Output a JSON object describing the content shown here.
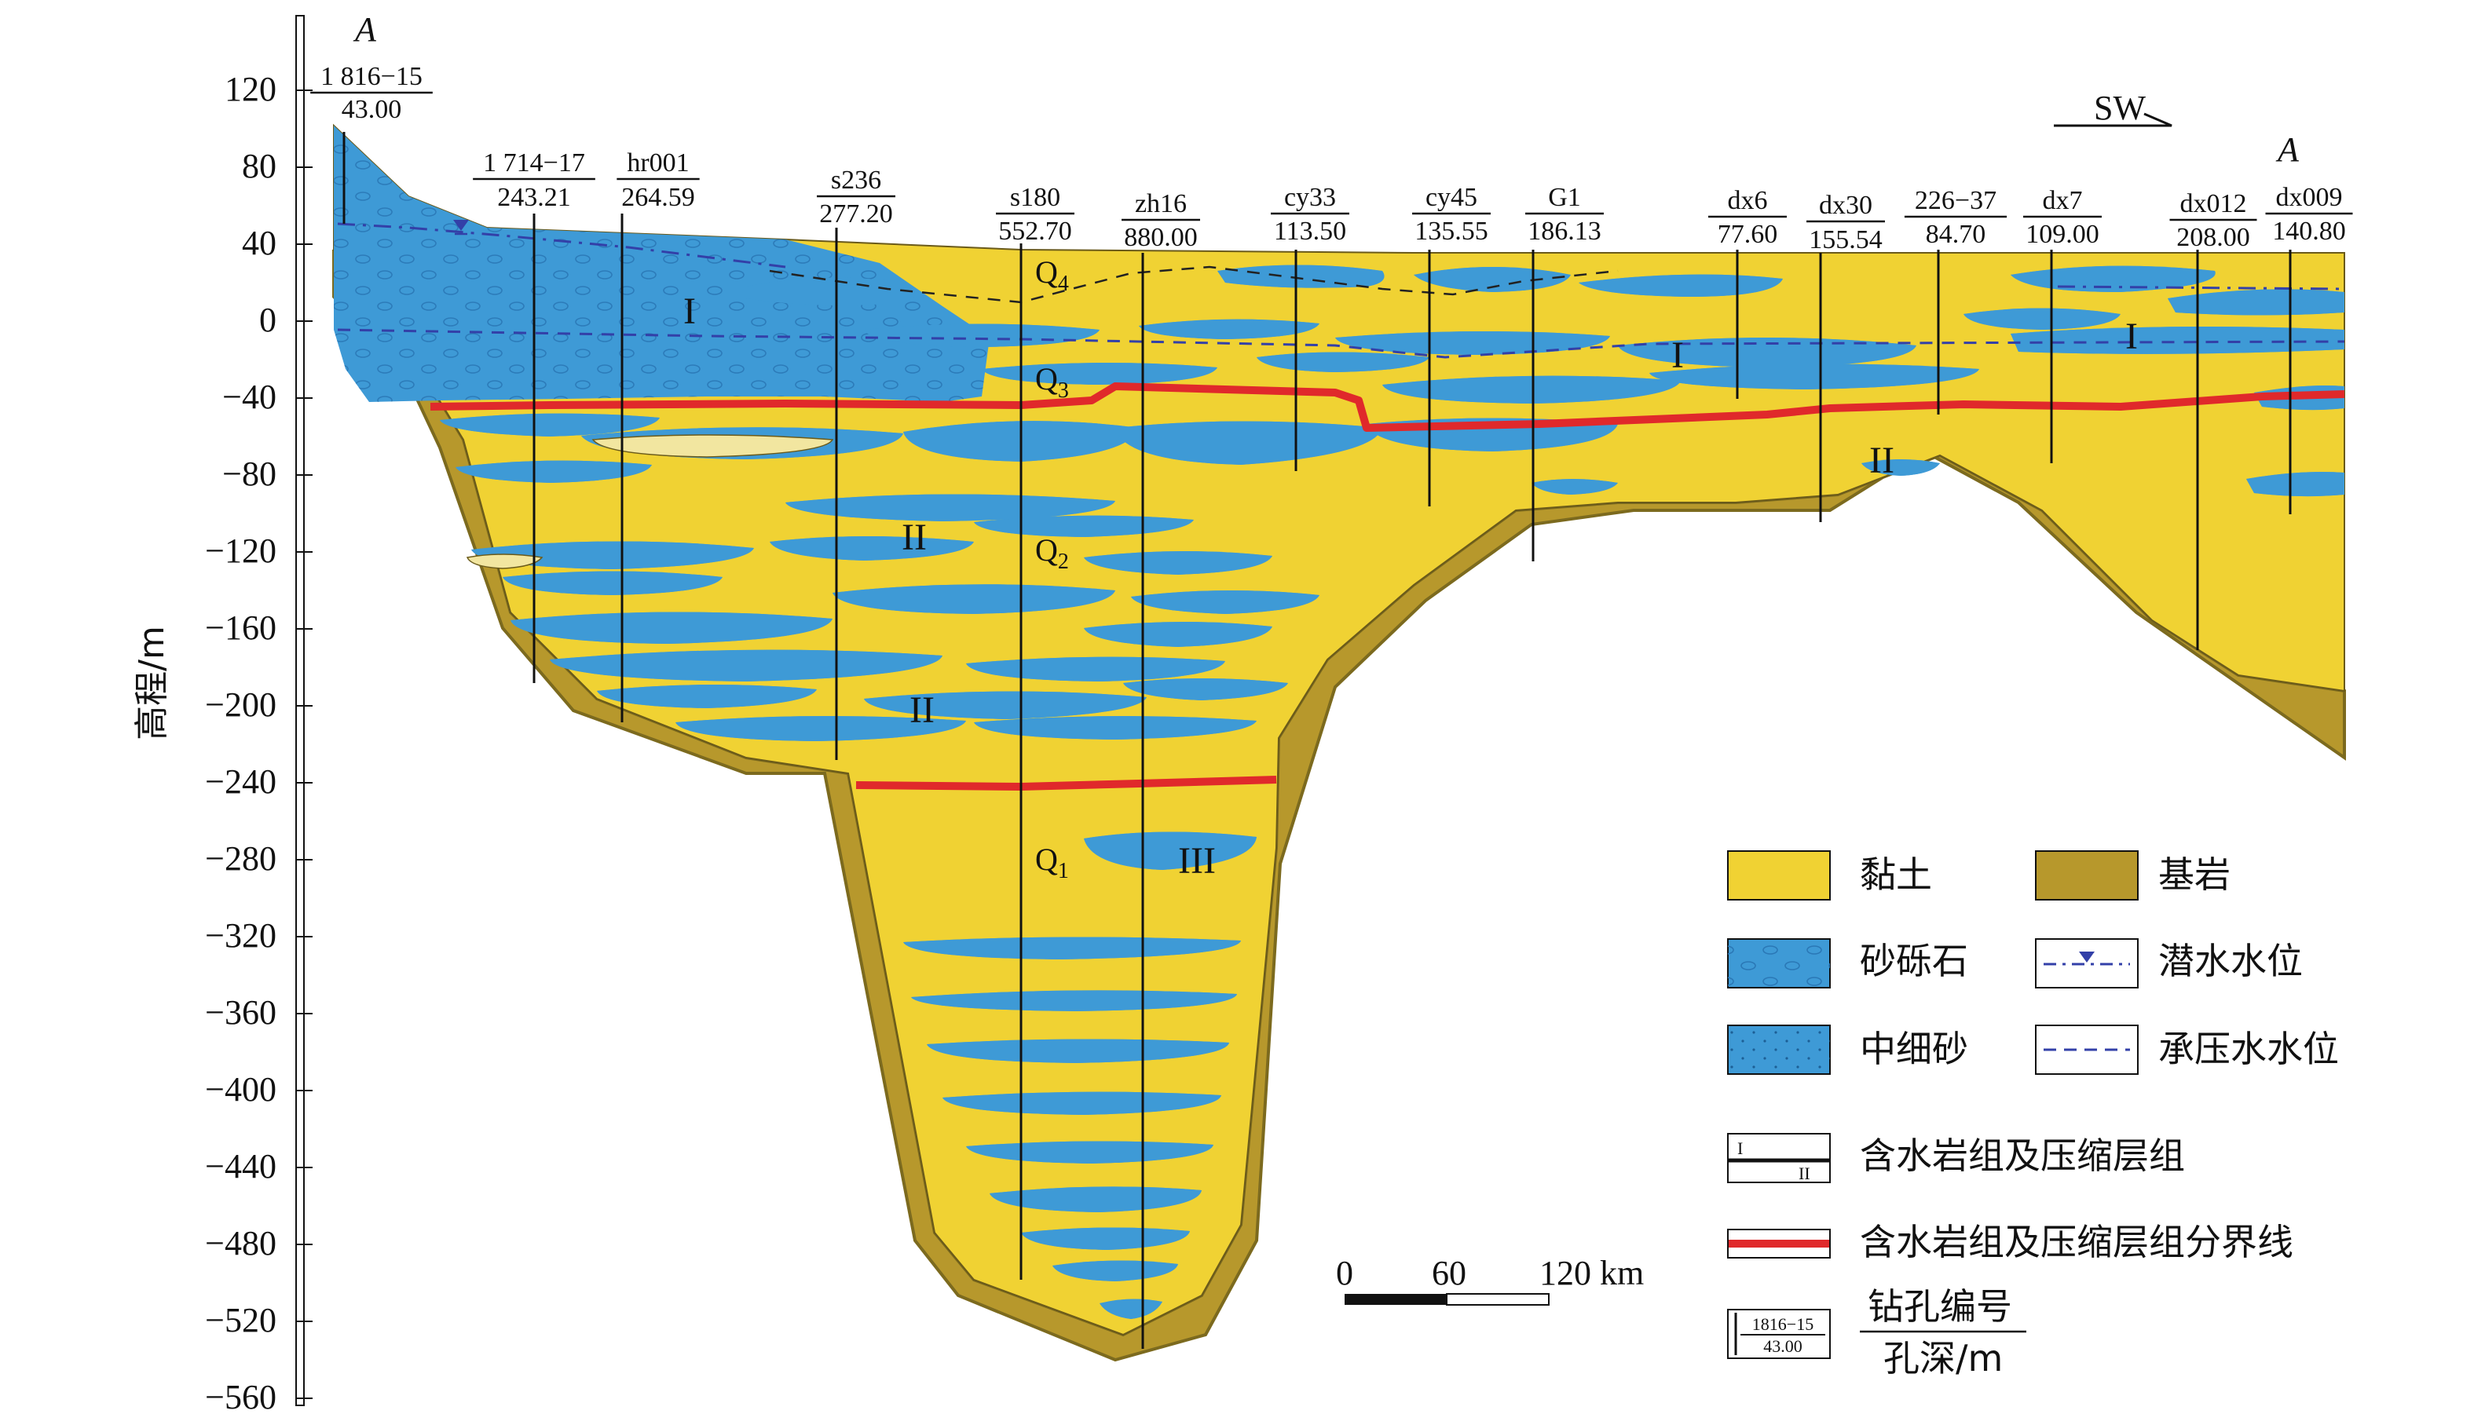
{
  "figure": {
    "y_axis": {
      "title": "高程/m",
      "ticks": [
        "120",
        "80",
        "40",
        "0",
        "−40",
        "−80",
        "−120",
        "−160",
        "−200",
        "−240",
        "−280",
        "−320",
        "−360",
        "−400",
        "−440",
        "−480",
        "−520",
        "−560"
      ]
    },
    "section_ends": {
      "left": "A",
      "right": "A"
    },
    "direction": "SW",
    "boreholes": [
      {
        "id": "1 816−15",
        "depth": "43.00"
      },
      {
        "id": "1 714−17",
        "depth": "243.21"
      },
      {
        "id": "hr001",
        "depth": "264.59"
      },
      {
        "id": "s236",
        "depth": "277.20"
      },
      {
        "id": "s180",
        "depth": "552.70"
      },
      {
        "id": "zh16",
        "depth": "880.00"
      },
      {
        "id": "cy33",
        "depth": "113.50"
      },
      {
        "id": "cy45",
        "depth": "135.55"
      },
      {
        "id": "G1",
        "depth": "186.13"
      },
      {
        "id": "dx6",
        "depth": "77.60"
      },
      {
        "id": "dx30",
        "depth": "155.54"
      },
      {
        "id": "226−37",
        "depth": "84.70"
      },
      {
        "id": "dx7",
        "depth": "109.00"
      },
      {
        "id": "dx012",
        "depth": "208.00"
      },
      {
        "id": "dx009",
        "depth": "140.80"
      }
    ],
    "aquifer_units": [
      "I",
      "I",
      "I",
      "II",
      "II",
      "II",
      "III"
    ],
    "strata": [
      {
        "main": "Q",
        "sub": "4"
      },
      {
        "main": "Q",
        "sub": "3"
      },
      {
        "main": "Q",
        "sub": "2"
      },
      {
        "main": "Q",
        "sub": "1"
      }
    ],
    "scale_bar": {
      "zero": "0",
      "mid": "60",
      "end": "120 km"
    },
    "legend": {
      "clay": "黏土",
      "bedrock": "基岩",
      "gravel": "砂砾石",
      "phreatic": "潜水水位",
      "finesand": "中细砂",
      "confined": "承压水水位",
      "aquifer_group": "含水岩组及压缩层组",
      "boundary": "含水岩组及压缩层组分界线",
      "borehole_number": "钻孔编号",
      "hole_depth": "孔深/m",
      "sample_id": "1816−15",
      "sample_depth": "43.00",
      "sample_units": [
        "I",
        "II"
      ]
    },
    "colors": {
      "clay": "#f0d233",
      "bedrock": "#b7982c",
      "bedrock_edge": "#7c6a1e",
      "sand": "#3e9ad6",
      "boundary": "#e0292b",
      "water_table": "#3340a8",
      "lens_light": "#f2e6a0"
    }
  }
}
